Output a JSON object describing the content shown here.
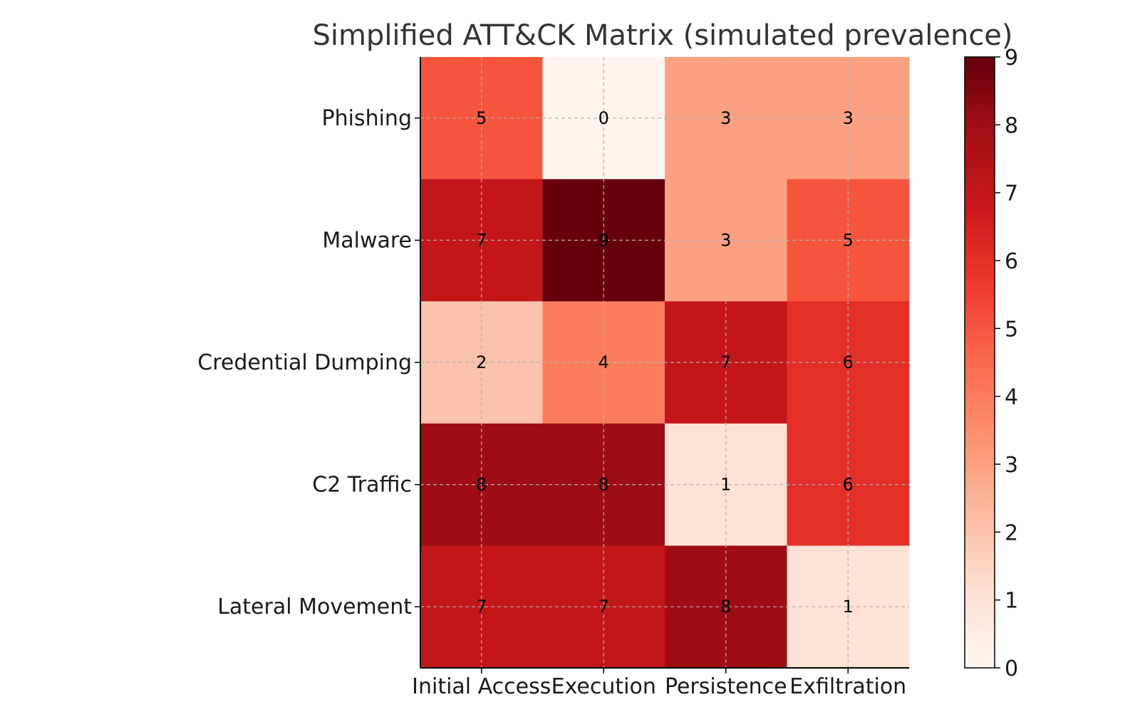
{
  "chart_data": {
    "type": "heatmap",
    "title": "Simplified ATT&CK Matrix (simulated prevalence)",
    "xlabel": "",
    "ylabel": "",
    "x_categories": [
      "Initial Access",
      "Execution",
      "Persistence",
      "Exfiltration"
    ],
    "y_categories": [
      "Phishing",
      "Malware",
      "Credential Dumping",
      "C2 Traffic",
      "Lateral Movement"
    ],
    "values": [
      [
        5,
        0,
        3,
        3
      ],
      [
        7,
        9,
        3,
        5
      ],
      [
        2,
        4,
        7,
        6
      ],
      [
        8,
        8,
        1,
        6
      ],
      [
        7,
        7,
        8,
        1
      ]
    ],
    "colorbar": {
      "min": 0,
      "max": 9,
      "ticks": [
        0,
        1,
        2,
        3,
        4,
        5,
        6,
        7,
        8,
        9
      ]
    },
    "colormap": "Reds",
    "grid": true,
    "colors": {
      "low": "#fff5f0",
      "high": "#67000d"
    }
  }
}
